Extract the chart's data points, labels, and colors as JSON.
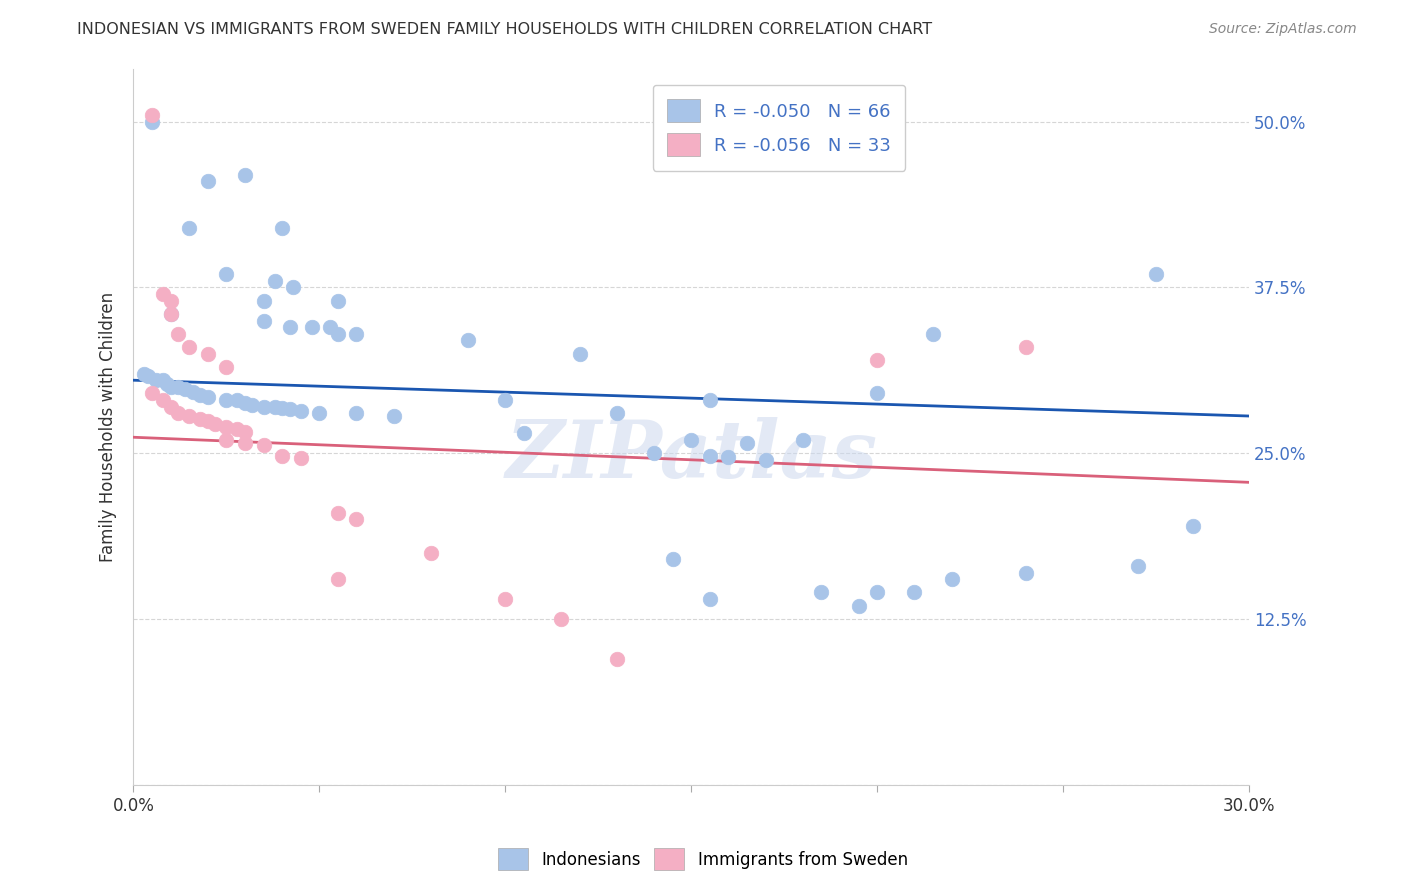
{
  "title": "INDONESIAN VS IMMIGRANTS FROM SWEDEN FAMILY HOUSEHOLDS WITH CHILDREN CORRELATION CHART",
  "source": "Source: ZipAtlas.com",
  "ylabel": "Family Households with Children",
  "xlim": [
    0.0,
    0.3
  ],
  "ylim": [
    0.0,
    0.54
  ],
  "x_ticks": [
    0.0,
    0.05,
    0.1,
    0.15,
    0.2,
    0.25,
    0.3
  ],
  "x_tick_labels": [
    "0.0%",
    "",
    "",
    "",
    "",
    "",
    "30.0%"
  ],
  "y_ticks": [
    0.0,
    0.125,
    0.25,
    0.375,
    0.5
  ],
  "y_tick_labels": [
    "",
    "12.5%",
    "25.0%",
    "37.5%",
    "50.0%"
  ],
  "legend_blue_label": "R = -0.050   N = 66",
  "legend_pink_label": "R = -0.056   N = 33",
  "blue_color": "#a8c4e8",
  "pink_color": "#f4afc4",
  "blue_line_color": "#1a56b0",
  "pink_line_color": "#d9607a",
  "blue_line": [
    0.0,
    0.305,
    0.3,
    0.278
  ],
  "pink_line": [
    0.0,
    0.262,
    0.3,
    0.228
  ],
  "blue_points": [
    [
      0.005,
      0.5
    ],
    [
      0.02,
      0.455
    ],
    [
      0.03,
      0.46
    ],
    [
      0.015,
      0.42
    ],
    [
      0.04,
      0.42
    ],
    [
      0.025,
      0.385
    ],
    [
      0.038,
      0.38
    ],
    [
      0.043,
      0.375
    ],
    [
      0.035,
      0.365
    ],
    [
      0.055,
      0.365
    ],
    [
      0.01,
      0.355
    ],
    [
      0.035,
      0.35
    ],
    [
      0.042,
      0.345
    ],
    [
      0.048,
      0.345
    ],
    [
      0.053,
      0.345
    ],
    [
      0.055,
      0.34
    ],
    [
      0.06,
      0.34
    ],
    [
      0.09,
      0.335
    ],
    [
      0.12,
      0.325
    ],
    [
      0.003,
      0.31
    ],
    [
      0.004,
      0.308
    ],
    [
      0.006,
      0.305
    ],
    [
      0.008,
      0.305
    ],
    [
      0.009,
      0.302
    ],
    [
      0.01,
      0.3
    ],
    [
      0.012,
      0.3
    ],
    [
      0.014,
      0.298
    ],
    [
      0.016,
      0.296
    ],
    [
      0.018,
      0.294
    ],
    [
      0.02,
      0.292
    ],
    [
      0.025,
      0.29
    ],
    [
      0.028,
      0.29
    ],
    [
      0.03,
      0.288
    ],
    [
      0.032,
      0.286
    ],
    [
      0.035,
      0.285
    ],
    [
      0.038,
      0.285
    ],
    [
      0.04,
      0.284
    ],
    [
      0.042,
      0.283
    ],
    [
      0.045,
      0.282
    ],
    [
      0.05,
      0.28
    ],
    [
      0.06,
      0.28
    ],
    [
      0.07,
      0.278
    ],
    [
      0.1,
      0.29
    ],
    [
      0.13,
      0.28
    ],
    [
      0.155,
      0.29
    ],
    [
      0.2,
      0.295
    ],
    [
      0.105,
      0.265
    ],
    [
      0.15,
      0.26
    ],
    [
      0.165,
      0.258
    ],
    [
      0.18,
      0.26
    ],
    [
      0.14,
      0.25
    ],
    [
      0.155,
      0.248
    ],
    [
      0.16,
      0.247
    ],
    [
      0.17,
      0.245
    ],
    [
      0.145,
      0.17
    ],
    [
      0.185,
      0.145
    ],
    [
      0.2,
      0.145
    ],
    [
      0.22,
      0.155
    ],
    [
      0.155,
      0.14
    ],
    [
      0.195,
      0.135
    ],
    [
      0.24,
      0.16
    ],
    [
      0.27,
      0.165
    ],
    [
      0.21,
      0.145
    ],
    [
      0.285,
      0.195
    ],
    [
      0.275,
      0.385
    ],
    [
      0.215,
      0.34
    ]
  ],
  "pink_points": [
    [
      0.005,
      0.505
    ],
    [
      0.008,
      0.37
    ],
    [
      0.01,
      0.365
    ],
    [
      0.01,
      0.355
    ],
    [
      0.012,
      0.34
    ],
    [
      0.015,
      0.33
    ],
    [
      0.02,
      0.325
    ],
    [
      0.025,
      0.315
    ],
    [
      0.005,
      0.295
    ],
    [
      0.008,
      0.29
    ],
    [
      0.01,
      0.285
    ],
    [
      0.012,
      0.28
    ],
    [
      0.015,
      0.278
    ],
    [
      0.018,
      0.276
    ],
    [
      0.02,
      0.274
    ],
    [
      0.022,
      0.272
    ],
    [
      0.025,
      0.27
    ],
    [
      0.028,
      0.268
    ],
    [
      0.03,
      0.266
    ],
    [
      0.025,
      0.26
    ],
    [
      0.03,
      0.258
    ],
    [
      0.035,
      0.256
    ],
    [
      0.04,
      0.248
    ],
    [
      0.045,
      0.246
    ],
    [
      0.055,
      0.205
    ],
    [
      0.06,
      0.2
    ],
    [
      0.08,
      0.175
    ],
    [
      0.055,
      0.155
    ],
    [
      0.1,
      0.14
    ],
    [
      0.115,
      0.125
    ],
    [
      0.13,
      0.095
    ],
    [
      0.2,
      0.32
    ],
    [
      0.24,
      0.33
    ]
  ],
  "watermark": "ZIPatlas",
  "background_color": "#ffffff",
  "grid_color": "#cccccc"
}
